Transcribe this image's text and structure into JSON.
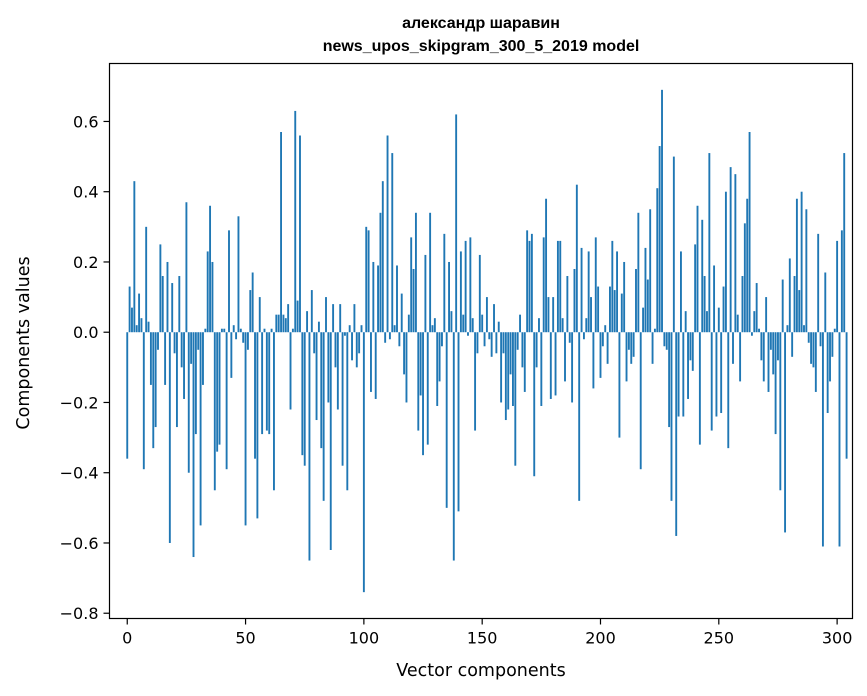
{
  "chart_data": {
    "type": "bar",
    "title_line1": "александр шаравин",
    "title_line2": "news_upos_skipgram_300_5_2019 model",
    "xlabel": "Vector components",
    "ylabel": "Components values",
    "xlim": [
      -7.5,
      306.5
    ],
    "ylim": [
      -0.815,
      0.765
    ],
    "xticks": [
      0,
      50,
      100,
      150,
      200,
      250,
      300
    ],
    "xtick_labels": [
      "0",
      "50",
      "100",
      "150",
      "200",
      "250",
      "300"
    ],
    "yticks": [
      -0.8,
      -0.6,
      -0.4,
      -0.2,
      0.0,
      0.2,
      0.4,
      0.6
    ],
    "ytick_labels": [
      "−0.8",
      "−0.6",
      "−0.4",
      "−0.2",
      "0.0",
      "0.2",
      "0.4",
      "0.6"
    ],
    "bar_color": "#1f77b4",
    "values": [
      -0.36,
      0.13,
      0.07,
      0.43,
      0.02,
      0.11,
      0.04,
      -0.39,
      0.3,
      0.03,
      -0.15,
      -0.33,
      -0.27,
      -0.05,
      0.25,
      0.16,
      -0.15,
      0.2,
      -0.6,
      0.14,
      -0.06,
      -0.27,
      0.16,
      -0.1,
      -0.19,
      0.37,
      -0.4,
      -0.09,
      -0.64,
      -0.29,
      -0.05,
      -0.55,
      -0.15,
      0.01,
      0.23,
      0.36,
      0.2,
      -0.45,
      -0.34,
      -0.32,
      0.01,
      0.01,
      -0.39,
      0.29,
      -0.13,
      0.02,
      -0.02,
      0.33,
      0.01,
      -0.03,
      -0.55,
      -0.05,
      0.12,
      0.17,
      -0.36,
      -0.53,
      0.1,
      -0.29,
      0.01,
      -0.28,
      -0.29,
      0.01,
      -0.45,
      0.05,
      0.05,
      0.57,
      0.05,
      0.04,
      0.08,
      -0.22,
      0.01,
      0.63,
      0.09,
      0.56,
      -0.35,
      -0.38,
      0.06,
      -0.65,
      0.12,
      -0.06,
      -0.25,
      0.03,
      -0.33,
      -0.48,
      0.1,
      -0.2,
      -0.62,
      0.08,
      -0.1,
      -0.22,
      0.08,
      -0.38,
      -0.01,
      -0.45,
      0.02,
      -0.08,
      0.08,
      -0.1,
      -0.06,
      0.02,
      -0.74,
      0.3,
      0.29,
      -0.17,
      0.2,
      -0.19,
      0.19,
      0.34,
      0.43,
      -0.03,
      0.56,
      -0.02,
      0.51,
      0.02,
      0.19,
      -0.04,
      0.11,
      -0.12,
      -0.2,
      0.05,
      0.27,
      0.18,
      0.34,
      -0.28,
      -0.18,
      -0.35,
      0.22,
      -0.32,
      0.34,
      0.02,
      0.04,
      -0.21,
      -0.14,
      -0.04,
      0.28,
      -0.5,
      0.2,
      0.06,
      -0.65,
      0.62,
      -0.51,
      0.23,
      0.05,
      0.26,
      -0.01,
      0.27,
      0.04,
      -0.28,
      -0.06,
      0.22,
      0.05,
      -0.04,
      0.1,
      -0.02,
      -0.07,
      0.08,
      -0.06,
      0.03,
      -0.2,
      -0.06,
      -0.25,
      -0.22,
      -0.12,
      -0.21,
      -0.38,
      -0.05,
      0.05,
      -0.1,
      -0.17,
      0.29,
      0.26,
      0.28,
      -0.41,
      -0.1,
      0.04,
      -0.21,
      0.27,
      0.38,
      0.1,
      -0.19,
      0.1,
      -0.18,
      0.26,
      0.26,
      0.04,
      -0.14,
      0.16,
      -0.03,
      -0.2,
      0.18,
      0.42,
      -0.48,
      0.24,
      -0.02,
      0.04,
      0.23,
      0.1,
      -0.16,
      0.27,
      0.13,
      -0.13,
      -0.04,
      0.02,
      -0.09,
      0.13,
      0.26,
      0.12,
      0.23,
      -0.3,
      0.11,
      0.2,
      -0.14,
      -0.05,
      -0.09,
      -0.07,
      0.18,
      0.34,
      -0.39,
      0.07,
      0.24,
      0.15,
      0.35,
      -0.09,
      0.01,
      0.41,
      0.53,
      0.69,
      -0.04,
      -0.05,
      -0.27,
      -0.48,
      0.5,
      -0.58,
      -0.24,
      0.23,
      -0.24,
      0.06,
      -0.19,
      -0.08,
      -0.11,
      0.25,
      0.36,
      -0.32,
      0.32,
      0.16,
      0.06,
      0.51,
      -0.28,
      0.19,
      -0.24,
      0.07,
      -0.23,
      0.13,
      0.4,
      -0.33,
      0.47,
      -0.09,
      0.45,
      0.05,
      -0.14,
      0.16,
      0.31,
      0.38,
      0.57,
      -0.01,
      0.06,
      0.14,
      0.01,
      -0.08,
      -0.14,
      0.1,
      -0.17,
      -0.05,
      -0.12,
      -0.29,
      -0.08,
      -0.45,
      0.15,
      -0.57,
      0.02,
      0.21,
      -0.07,
      0.16,
      0.38,
      0.12,
      0.4,
      0.02,
      0.35,
      -0.03,
      -0.09,
      -0.1,
      -0.17,
      0.28,
      -0.04,
      -0.61,
      0.17,
      -0.23,
      -0.14,
      -0.07,
      0.01,
      0.26,
      -0.61,
      0.29,
      0.51,
      -0.36
    ]
  }
}
